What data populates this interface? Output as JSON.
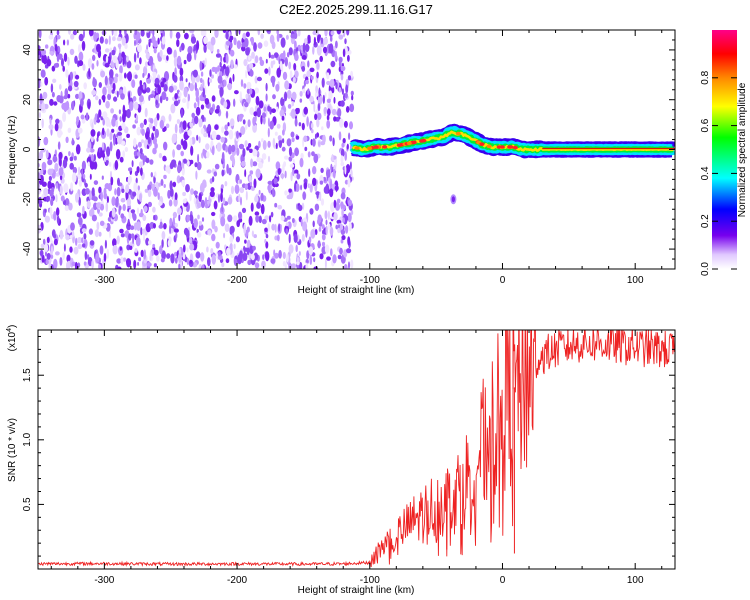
{
  "figure_title": "C2E2.2025.299.11.16.G17",
  "chart_data": [
    {
      "type": "heatmap",
      "title": "C2E2.2025.299.11.16.G17",
      "xlabel": "Height of straight line (km)",
      "ylabel": "Frequency (Hz)",
      "xlim": [
        -350,
        130
      ],
      "ylim": [
        -48,
        48
      ],
      "xticks": [
        -300,
        -200,
        -100,
        0,
        100
      ],
      "xtick_labels": [
        "-300",
        "-200",
        "-100",
        "0",
        "100"
      ],
      "yticks": [
        -40,
        -20,
        0,
        20,
        40
      ],
      "ytick_labels": [
        "-40",
        "-20",
        "0",
        "20",
        "40"
      ],
      "noise_region_x": [
        -350,
        -113
      ],
      "signal_start_x": -113,
      "isolated_blob": {
        "x": -37,
        "y": -20
      },
      "frequency_track": {
        "x": [
          -113,
          -105,
          -95,
          -85,
          -75,
          -65,
          -55,
          -45,
          -38,
          -30,
          -22,
          -15,
          -8,
          0,
          8,
          15,
          25,
          40,
          60,
          80,
          100,
          130
        ],
        "y": [
          1,
          0,
          1,
          1,
          2,
          3,
          4,
          5,
          7,
          6,
          4,
          2,
          1,
          1,
          1,
          0,
          0,
          0,
          0,
          0,
          0,
          0
        ]
      },
      "colorbar": {
        "label": "Normalized spectral amplitude",
        "range": [
          0,
          1
        ],
        "ticks": [
          0.0,
          0.2,
          0.4,
          0.6,
          0.8
        ],
        "tick_labels": [
          "0.0",
          "0.2",
          "0.4",
          "0.6",
          "0.8"
        ],
        "colors": [
          "#ffffff",
          "#c9a0ff",
          "#7700ee",
          "#0000ff",
          "#00ffff",
          "#00ff00",
          "#ffff00",
          "#ff8800",
          "#ff0000",
          "#ff0088"
        ]
      }
    },
    {
      "type": "line",
      "title": "",
      "xlabel": "Height of straight line (km)",
      "ylabel": "SNR (10 * v/v)",
      "yscale_label": "(x10",
      "yscale_exp": "4",
      "yscale_close": ")",
      "xlim": [
        -350,
        130
      ],
      "ylim": [
        0,
        18500
      ],
      "xticks": [
        -300,
        -200,
        -100,
        0,
        100
      ],
      "xtick_labels": [
        "-300",
        "-200",
        "-100",
        "0",
        "100"
      ],
      "yticks": [
        5000,
        10000,
        15000
      ],
      "ytick_labels": [
        "0.5",
        "1.0",
        "1.5"
      ],
      "line_color": "#ee2222",
      "series": [
        {
          "name": "SNR",
          "x": [
            -350,
            -300,
            -250,
            -200,
            -150,
            -120,
            -100,
            -95,
            -90,
            -80,
            -70,
            -60,
            -50,
            -40,
            -35,
            -30,
            -25,
            -20,
            -15,
            -10,
            -5,
            0,
            5,
            10,
            15,
            20,
            25,
            30,
            40,
            50,
            60,
            70,
            80,
            90,
            100,
            110,
            120,
            130
          ],
          "y": [
            400,
            420,
            380,
            400,
            380,
            400,
            500,
            1200,
            1800,
            2600,
            3500,
            4300,
            5000,
            5500,
            6000,
            6500,
            7500,
            8500,
            9500,
            10500,
            11500,
            12500,
            13500,
            14200,
            14800,
            15500,
            16000,
            16500,
            17000,
            17300,
            17500,
            17500,
            17400,
            17300,
            17200,
            17100,
            17000,
            16900
          ]
        }
      ],
      "dropouts": [
        {
          "x": -42,
          "y": 1500
        },
        {
          "x": 9,
          "y": 1200
        },
        {
          "x": 8,
          "y": 18500
        }
      ]
    }
  ]
}
